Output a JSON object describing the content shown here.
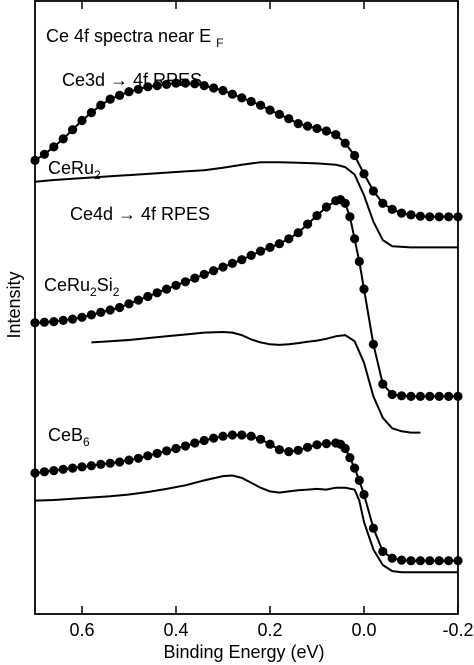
{
  "chart_data": {
    "type": "line",
    "title": "Ce 4f spectra near E_F",
    "title_main": "Ce 4f spectra near E",
    "title_sub": "F",
    "xlabel": "Binding Energy (eV)",
    "ylabel": "Intensity",
    "xlim": [
      0.7,
      -0.2
    ],
    "x_reversed": true,
    "ylim": [
      0,
      1
    ],
    "y_ticks_labeled": false,
    "grid": false,
    "legend": "none",
    "x_ticks": [
      0.6,
      0.4,
      0.2,
      0.0,
      -0.2
    ],
    "x_tick_labels": [
      "0.6",
      "0.4",
      "0.2",
      "0.0",
      "-0.2"
    ],
    "labels": [
      {
        "id": "ce3d-label",
        "parts": [
          {
            "text": "Ce3d → 4f RPES"
          }
        ]
      },
      {
        "id": "ceru2-label",
        "parts": [
          {
            "text": "CeRu"
          },
          {
            "text": "2",
            "sub": true
          }
        ]
      },
      {
        "id": "ce4d-label",
        "parts": [
          {
            "text": "Ce4d → 4f RPES"
          }
        ]
      },
      {
        "id": "ceru2si2-label",
        "parts": [
          {
            "text": "CeRu"
          },
          {
            "text": "2",
            "sub": true
          },
          {
            "text": "Si"
          },
          {
            "text": "2",
            "sub": true
          }
        ]
      },
      {
        "id": "ceb6-label",
        "parts": [
          {
            "text": "CeB"
          },
          {
            "text": "6",
            "sub": true
          }
        ]
      }
    ],
    "series": [
      {
        "id": "ceru2-3d",
        "style": "markers+line",
        "x": [
          0.7,
          0.68,
          0.66,
          0.64,
          0.62,
          0.6,
          0.58,
          0.56,
          0.54,
          0.52,
          0.5,
          0.48,
          0.46,
          0.44,
          0.42,
          0.4,
          0.38,
          0.36,
          0.34,
          0.32,
          0.3,
          0.28,
          0.26,
          0.24,
          0.22,
          0.2,
          0.18,
          0.16,
          0.14,
          0.12,
          0.1,
          0.08,
          0.06,
          0.04,
          0.02,
          0.0,
          -0.02,
          -0.04,
          -0.06,
          -0.08,
          -0.1,
          -0.12,
          -0.14,
          -0.16,
          -0.18,
          -0.2
        ],
        "y": [
          0.74,
          0.75,
          0.762,
          0.775,
          0.79,
          0.805,
          0.818,
          0.83,
          0.84,
          0.846,
          0.852,
          0.856,
          0.86,
          0.862,
          0.864,
          0.866,
          0.866,
          0.865,
          0.862,
          0.858,
          0.854,
          0.848,
          0.842,
          0.836,
          0.83,
          0.822,
          0.815,
          0.808,
          0.8,
          0.796,
          0.792,
          0.788,
          0.782,
          0.768,
          0.748,
          0.718,
          0.69,
          0.67,
          0.66,
          0.654,
          0.651,
          0.649,
          0.648,
          0.648,
          0.648,
          0.648
        ]
      },
      {
        "id": "ceru2-4d",
        "style": "line",
        "x": [
          0.7,
          0.66,
          0.62,
          0.58,
          0.54,
          0.5,
          0.46,
          0.42,
          0.38,
          0.34,
          0.3,
          0.26,
          0.22,
          0.18,
          0.14,
          0.1,
          0.06,
          0.04,
          0.02,
          0.0,
          -0.02,
          -0.04,
          -0.06,
          -0.1,
          -0.14,
          -0.18,
          -0.2
        ],
        "y": [
          0.705,
          0.708,
          0.71,
          0.712,
          0.714,
          0.716,
          0.718,
          0.72,
          0.722,
          0.724,
          0.728,
          0.733,
          0.737,
          0.737,
          0.736,
          0.735,
          0.733,
          0.729,
          0.717,
          0.683,
          0.64,
          0.61,
          0.6,
          0.598,
          0.598,
          0.598,
          0.598
        ]
      },
      {
        "id": "ceru2si2-3d",
        "style": "markers+line",
        "x": [
          0.7,
          0.68,
          0.66,
          0.64,
          0.62,
          0.6,
          0.58,
          0.56,
          0.54,
          0.52,
          0.5,
          0.48,
          0.46,
          0.44,
          0.42,
          0.4,
          0.38,
          0.36,
          0.34,
          0.32,
          0.3,
          0.28,
          0.26,
          0.24,
          0.22,
          0.2,
          0.18,
          0.16,
          0.14,
          0.12,
          0.1,
          0.08,
          0.06,
          0.05,
          0.04,
          0.03,
          0.02,
          0.01,
          0.0,
          -0.02,
          -0.04,
          -0.06,
          -0.08,
          -0.1,
          -0.12,
          -0.14,
          -0.16,
          -0.18,
          -0.2
        ],
        "y": [
          0.475,
          0.476,
          0.477,
          0.479,
          0.481,
          0.484,
          0.488,
          0.492,
          0.496,
          0.5,
          0.506,
          0.512,
          0.518,
          0.524,
          0.53,
          0.536,
          0.542,
          0.548,
          0.554,
          0.56,
          0.566,
          0.572,
          0.578,
          0.585,
          0.592,
          0.598,
          0.604,
          0.612,
          0.622,
          0.636,
          0.65,
          0.664,
          0.674,
          0.676,
          0.67,
          0.648,
          0.612,
          0.575,
          0.53,
          0.44,
          0.375,
          0.358,
          0.356,
          0.355,
          0.355,
          0.355,
          0.355,
          0.355,
          0.355
        ]
      },
      {
        "id": "ceru2si2-4d",
        "style": "line",
        "x": [
          0.58,
          0.54,
          0.5,
          0.46,
          0.42,
          0.38,
          0.34,
          0.3,
          0.28,
          0.26,
          0.24,
          0.22,
          0.2,
          0.18,
          0.16,
          0.14,
          0.12,
          0.1,
          0.08,
          0.06,
          0.04,
          0.02,
          0.0,
          -0.02,
          -0.04,
          -0.06,
          -0.08,
          -0.1,
          -0.12
        ],
        "y": [
          0.443,
          0.445,
          0.447,
          0.45,
          0.453,
          0.456,
          0.459,
          0.46,
          0.459,
          0.455,
          0.448,
          0.443,
          0.44,
          0.439,
          0.44,
          0.442,
          0.444,
          0.446,
          0.449,
          0.453,
          0.455,
          0.445,
          0.41,
          0.355,
          0.32,
          0.303,
          0.298,
          0.296,
          0.296
        ]
      },
      {
        "id": "ceb6-3d",
        "style": "markers+line",
        "x": [
          0.7,
          0.68,
          0.66,
          0.64,
          0.62,
          0.6,
          0.58,
          0.56,
          0.54,
          0.52,
          0.5,
          0.48,
          0.46,
          0.44,
          0.42,
          0.4,
          0.38,
          0.36,
          0.34,
          0.32,
          0.3,
          0.28,
          0.26,
          0.24,
          0.22,
          0.2,
          0.18,
          0.16,
          0.14,
          0.12,
          0.1,
          0.08,
          0.06,
          0.05,
          0.04,
          0.03,
          0.02,
          0.01,
          0.0,
          -0.02,
          -0.04,
          -0.06,
          -0.08,
          -0.1,
          -0.12,
          -0.14,
          -0.16,
          -0.18,
          -0.2
        ],
        "y": [
          0.23,
          0.232,
          0.234,
          0.236,
          0.238,
          0.24,
          0.242,
          0.244,
          0.246,
          0.248,
          0.251,
          0.254,
          0.258,
          0.262,
          0.266,
          0.27,
          0.274,
          0.279,
          0.283,
          0.287,
          0.29,
          0.292,
          0.292,
          0.29,
          0.285,
          0.277,
          0.268,
          0.265,
          0.267,
          0.272,
          0.276,
          0.278,
          0.279,
          0.277,
          0.27,
          0.255,
          0.238,
          0.218,
          0.195,
          0.14,
          0.102,
          0.091,
          0.088,
          0.087,
          0.087,
          0.087,
          0.087,
          0.087,
          0.087
        ]
      },
      {
        "id": "ceb6-4d",
        "style": "line",
        "x": [
          0.7,
          0.66,
          0.62,
          0.58,
          0.54,
          0.5,
          0.46,
          0.42,
          0.38,
          0.34,
          0.3,
          0.28,
          0.26,
          0.24,
          0.22,
          0.2,
          0.18,
          0.16,
          0.14,
          0.12,
          0.1,
          0.08,
          0.06,
          0.04,
          0.02,
          0.01,
          0.0,
          -0.02,
          -0.04,
          -0.06,
          -0.08,
          -0.12,
          -0.16,
          -0.2
        ],
        "y": [
          0.185,
          0.186,
          0.188,
          0.19,
          0.192,
          0.195,
          0.199,
          0.204,
          0.21,
          0.218,
          0.225,
          0.226,
          0.222,
          0.214,
          0.206,
          0.2,
          0.198,
          0.2,
          0.202,
          0.203,
          0.204,
          0.203,
          0.206,
          0.206,
          0.203,
          0.185,
          0.15,
          0.105,
          0.08,
          0.07,
          0.068,
          0.068,
          0.068,
          0.068
        ]
      }
    ]
  }
}
